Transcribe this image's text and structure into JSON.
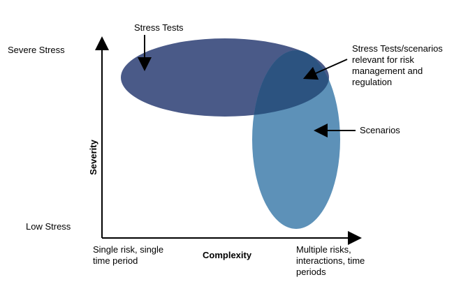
{
  "diagram": {
    "y_axis": {
      "title": "Severity",
      "top_label": "Severe Stress",
      "bottom_label": "Low Stress"
    },
    "x_axis": {
      "title": "Complexity",
      "left_label": [
        "Single risk, single",
        "time period"
      ],
      "right_label": [
        "Multiple risks,",
        "interactions, time",
        "periods"
      ]
    },
    "callouts": {
      "stress_tests": "Stress Tests",
      "overlap": [
        "Stress Tests/scenarios",
        "relevant for risk",
        "management and",
        "regulation"
      ],
      "scenarios": "Scenarios"
    },
    "colors": {
      "stress_tests_fill": "#4a5a88",
      "scenarios_fill": "#5d91b8",
      "overlap_fill": "#2c5380",
      "axis": "#000000"
    }
  }
}
